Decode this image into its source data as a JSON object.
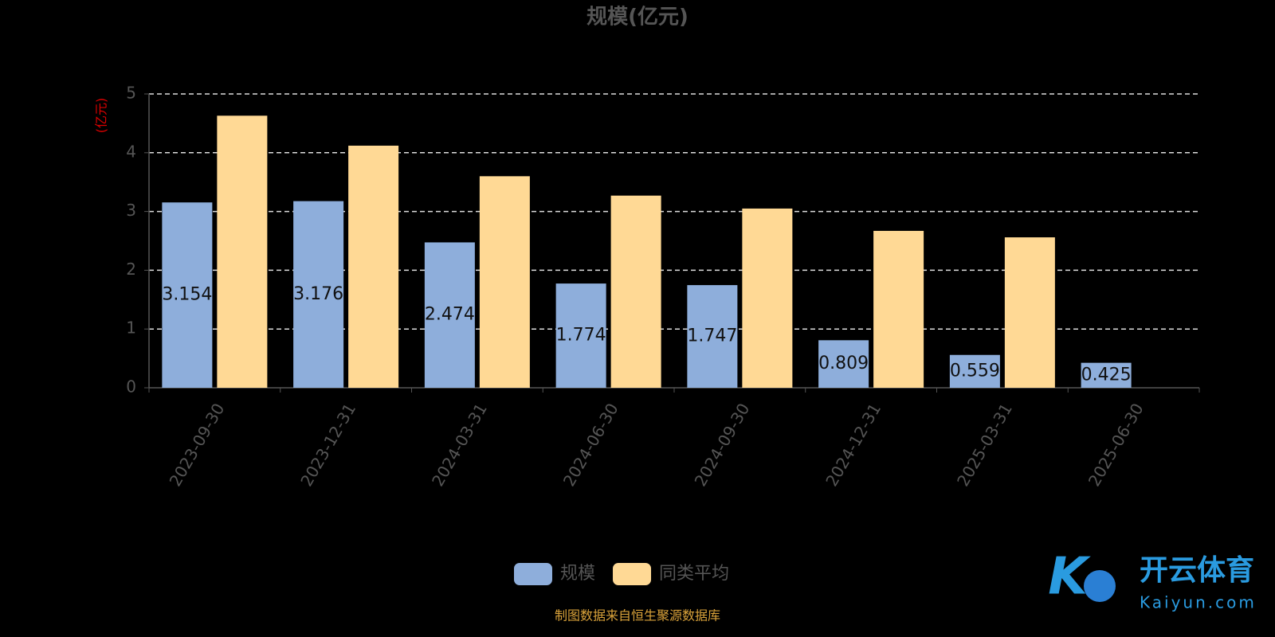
{
  "chart_data": {
    "type": "bar",
    "title": "规模(亿元)",
    "y_axis_label": "(亿元)",
    "categories": [
      "2023-09-30",
      "2023-12-31",
      "2024-03-31",
      "2024-06-30",
      "2024-09-30",
      "2024-12-31",
      "2025-03-31",
      "2025-06-30"
    ],
    "series": [
      {
        "name": "规模",
        "color": "#8eaedb",
        "values": [
          3.154,
          3.176,
          2.474,
          1.774,
          1.747,
          0.809,
          0.559,
          0.425
        ],
        "show_labels": true
      },
      {
        "name": "同类平均",
        "color": "#ffd995",
        "values": [
          4.63,
          4.12,
          3.6,
          3.27,
          3.05,
          2.67,
          2.56,
          null
        ],
        "show_labels": false
      }
    ],
    "ylim": [
      0,
      5
    ],
    "yticks": [
      0,
      1,
      2,
      3,
      4,
      5
    ],
    "grid": true,
    "legend": "bottom",
    "source": "制图数据来自恒生聚源数据库",
    "watermark": {
      "brand": "开云体育",
      "site": "Kaiyun.com"
    }
  }
}
